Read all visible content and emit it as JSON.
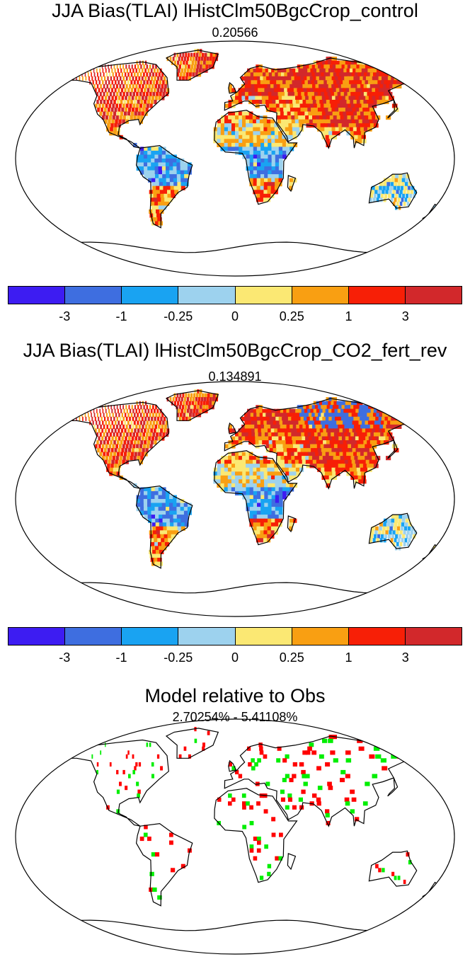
{
  "colorbar": {
    "colors": [
      "#3d1cf2",
      "#3e6ee0",
      "#19a3f2",
      "#9dd2ee",
      "#fbe873",
      "#f99f12",
      "#f71f06",
      "#d2282b"
    ],
    "tick_labels": [
      "-3",
      "-1",
      "-0.25",
      "0",
      "0.25",
      "1",
      "3"
    ]
  },
  "panels": [
    {
      "title": "JJA Bias(TLAI) lHistClm50BgcCrop_control",
      "subtitle": "0.20566"
    },
    {
      "title": "JJA Bias(TLAI) lHistClm50BgcCrop_CO2_fert_rev",
      "subtitle": "0.134891"
    },
    {
      "title": "Model relative to Obs",
      "subtitle": "2.70254% - 5.41108%"
    }
  ],
  "diff_colors": {
    "worse": "#ff0000",
    "better": "#00ee00"
  }
}
